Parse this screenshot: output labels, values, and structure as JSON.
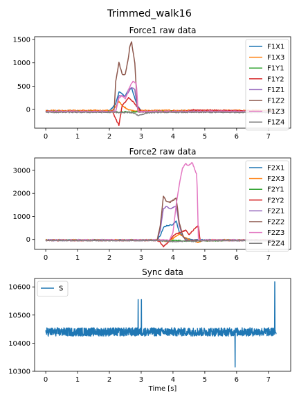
{
  "figure": {
    "title": "Trimmed_walk16"
  },
  "chart_data": [
    {
      "type": "line",
      "title": "Force1 raw data",
      "xlabel": "",
      "ylabel": "",
      "xlim": [
        -0.35,
        7.7
      ],
      "ylim": [
        -400,
        1560
      ],
      "xticks": [
        0,
        1,
        2,
        3,
        4,
        5,
        6,
        7
      ],
      "yticks": [
        0,
        500,
        1000,
        1500
      ],
      "grid": false,
      "legend": "right",
      "series": [
        {
          "name": "F1X1",
          "color": "#1f77b4",
          "x": [
            0,
            2.0,
            2.2,
            2.3,
            2.4,
            2.5,
            2.6,
            2.7,
            2.8,
            2.9,
            3.0,
            7.2
          ],
          "y": [
            -30,
            -30,
            120,
            380,
            330,
            290,
            420,
            460,
            240,
            60,
            -30,
            -30
          ]
        },
        {
          "name": "F1X3",
          "color": "#ff7f0e",
          "x": [
            0,
            2.1,
            2.2,
            2.3,
            2.4,
            2.5,
            2.6,
            2.7,
            2.8,
            2.9,
            7.2
          ],
          "y": [
            -20,
            -20,
            60,
            180,
            80,
            40,
            0,
            -20,
            -30,
            -20,
            -20
          ]
        },
        {
          "name": "F1Y1",
          "color": "#2ca02c",
          "x": [
            0,
            2.1,
            2.3,
            2.5,
            2.7,
            2.9,
            7.2
          ],
          "y": [
            -40,
            -40,
            -60,
            -50,
            -60,
            -40,
            -40
          ]
        },
        {
          "name": "F1Y2",
          "color": "#d62728",
          "x": [
            0,
            2.1,
            2.2,
            2.3,
            2.4,
            2.5,
            2.6,
            2.7,
            2.8,
            2.9,
            3.0,
            4.5,
            4.6,
            7.2
          ],
          "y": [
            -40,
            -40,
            -200,
            -340,
            80,
            160,
            250,
            200,
            120,
            40,
            -40,
            -40,
            -10,
            -40
          ]
        },
        {
          "name": "F1Z1",
          "color": "#9467bd",
          "x": [
            0,
            2.2,
            2.3,
            2.5,
            2.7,
            2.8,
            2.9,
            7.2
          ],
          "y": [
            -50,
            -50,
            300,
            280,
            480,
            420,
            -50,
            -50
          ]
        },
        {
          "name": "F1Z2",
          "color": "#8c564b",
          "x": [
            0,
            2.15,
            2.2,
            2.3,
            2.4,
            2.5,
            2.6,
            2.65,
            2.7,
            2.8,
            2.85,
            2.9,
            7.2
          ],
          "y": [
            -50,
            -50,
            600,
            1010,
            760,
            750,
            1120,
            1380,
            1440,
            1000,
            400,
            -50,
            -50
          ]
        },
        {
          "name": "F1Z3",
          "color": "#e377c2",
          "x": [
            0,
            2.2,
            2.3,
            2.4,
            2.5,
            2.6,
            2.7,
            2.75,
            2.8,
            2.85,
            2.9,
            7.2
          ],
          "y": [
            -40,
            -40,
            250,
            300,
            220,
            420,
            560,
            600,
            570,
            580,
            -40,
            -40
          ]
        },
        {
          "name": "F1Z4",
          "color": "#7f7f7f",
          "x": [
            0,
            2.2,
            2.4,
            2.6,
            2.8,
            2.9,
            3.2,
            3.6,
            7.2
          ],
          "y": [
            -60,
            -60,
            -70,
            -60,
            -80,
            -130,
            -70,
            -60,
            -60
          ]
        }
      ]
    },
    {
      "type": "line",
      "title": "Force2 raw data",
      "xlabel": "",
      "ylabel": "",
      "xlim": [
        -0.35,
        7.7
      ],
      "ylim": [
        -430,
        3540
      ],
      "xticks": [
        0,
        1,
        2,
        3,
        4,
        5,
        6,
        7
      ],
      "yticks": [
        0,
        1000,
        2000,
        3000
      ],
      "grid": false,
      "legend": "right",
      "series": [
        {
          "name": "F2X1",
          "color": "#1f77b4",
          "x": [
            0,
            3.5,
            3.6,
            3.7,
            3.8,
            3.9,
            4.0,
            4.1,
            4.2,
            4.3,
            4.4,
            4.6,
            7.2
          ],
          "y": [
            -20,
            -20,
            180,
            520,
            600,
            620,
            650,
            800,
            300,
            150,
            50,
            -20,
            -20
          ]
        },
        {
          "name": "F2X3",
          "color": "#ff7f0e",
          "x": [
            0,
            3.6,
            3.8,
            4.0,
            4.2,
            4.4,
            4.6,
            4.8,
            5.0,
            7.2
          ],
          "y": [
            -20,
            -20,
            -80,
            40,
            220,
            80,
            -60,
            -120,
            -20,
            -20
          ]
        },
        {
          "name": "F2Y1",
          "color": "#2ca02c",
          "x": [
            0,
            3.5,
            3.8,
            4.1,
            4.4,
            7.2
          ],
          "y": [
            -30,
            -30,
            -60,
            -40,
            -60,
            -30
          ]
        },
        {
          "name": "F2Y2",
          "color": "#d62728",
          "x": [
            0,
            3.5,
            3.6,
            3.7,
            3.8,
            4.0,
            4.2,
            4.4,
            4.5,
            4.6,
            4.7,
            4.8,
            4.85,
            7.2
          ],
          "y": [
            -40,
            -40,
            -120,
            -300,
            -200,
            150,
            300,
            400,
            200,
            350,
            500,
            600,
            -40,
            -40
          ]
        },
        {
          "name": "F2Z1",
          "color": "#9467bd",
          "x": [
            0,
            3.5,
            3.6,
            3.7,
            3.8,
            3.9,
            4.0,
            4.1,
            4.2,
            4.3,
            4.4,
            7.2
          ],
          "y": [
            -40,
            -40,
            400,
            1350,
            1450,
            1320,
            1380,
            1450,
            600,
            200,
            -40,
            -40
          ]
        },
        {
          "name": "F2Z2",
          "color": "#8c564b",
          "x": [
            0,
            3.5,
            3.6,
            3.7,
            3.8,
            3.9,
            4.0,
            4.1,
            4.2,
            4.3,
            4.4,
            7.2
          ],
          "y": [
            -40,
            -40,
            600,
            1860,
            1650,
            1620,
            1700,
            1800,
            700,
            200,
            -40,
            -40
          ]
        },
        {
          "name": "F2Z3",
          "color": "#e377c2",
          "x": [
            0,
            3.9,
            4.0,
            4.1,
            4.2,
            4.3,
            4.4,
            4.5,
            4.6,
            4.7,
            4.75,
            4.8,
            7.2
          ],
          "y": [
            -20,
            -20,
            300,
            1500,
            2400,
            3100,
            3280,
            3200,
            3350,
            3000,
            2800,
            -20,
            -20
          ]
        },
        {
          "name": "F2Z4",
          "color": "#7f7f7f",
          "x": [
            0,
            3.5,
            3.8,
            4.1,
            4.4,
            4.7,
            5.0,
            7.2
          ],
          "y": [
            -40,
            -40,
            -80,
            -100,
            -60,
            -80,
            -40,
            -40
          ]
        }
      ]
    },
    {
      "type": "line",
      "title": "Sync data",
      "xlabel": "Time [s]",
      "ylabel": "",
      "xlim": [
        -0.35,
        7.7
      ],
      "ylim": [
        10300,
        10630
      ],
      "xticks": [
        0,
        1,
        2,
        3,
        4,
        5,
        6,
        7
      ],
      "yticks": [
        10300,
        10400,
        10500,
        10600
      ],
      "grid": false,
      "legend": "top-left",
      "series": [
        {
          "name": "S",
          "color": "#1f77b4",
          "baseline": 10440,
          "noise": 15,
          "x_range": [
            0,
            7.25
          ],
          "spikes": [
            {
              "x": 2.9,
              "y": 10555
            },
            {
              "x": 3.0,
              "y": 10555
            },
            {
              "x": 5.95,
              "y": 10315
            },
            {
              "x": 7.2,
              "y": 10618
            }
          ]
        }
      ]
    }
  ]
}
